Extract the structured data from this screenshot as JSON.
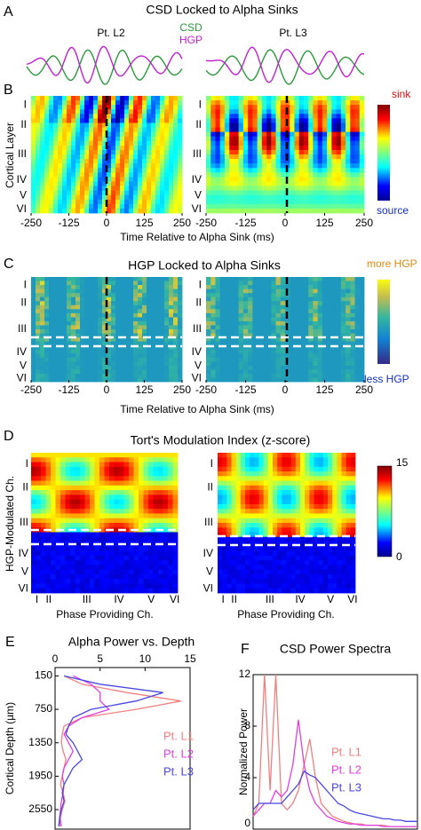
{
  "figure": {
    "A": {
      "label": "A",
      "title": "CSD Locked to Alpha Sinks",
      "legend": [
        "CSD",
        "HGP"
      ],
      "subplots": [
        "Pt. L2",
        "Pt. L3"
      ]
    },
    "B": {
      "label": "B",
      "ylabel": "Cortical Layer",
      "layers": [
        "I",
        "II",
        "III",
        "IV",
        "V",
        "VI"
      ],
      "xticks": [
        -250,
        -125,
        0,
        125,
        250
      ],
      "xlabel": "Time Relative to Alpha Sink (ms)",
      "colorbar": [
        "sink",
        "source"
      ]
    },
    "C": {
      "label": "C",
      "title": "HGP Locked to Alpha Sinks",
      "layers": [
        "I",
        "II",
        "III",
        "IV",
        "V",
        "VI"
      ],
      "xticks": [
        -250,
        -125,
        0,
        125,
        250
      ],
      "xlabel": "Time Relative to Alpha Sink (ms)",
      "colorbar": [
        "more HGP",
        "less HGP"
      ]
    },
    "D": {
      "label": "D",
      "title": "Tort's Modulation Index (z-score)",
      "ylabel": "HGP-Modulated Ch.",
      "xlabel": "Phase Providing Ch.",
      "layers": [
        "I",
        "II",
        "III",
        "IV",
        "V",
        "VI"
      ],
      "colorbar_ticks": [
        15,
        0
      ]
    }
  },
  "chart_data": [
    {
      "type": "line",
      "label": "E",
      "title": "Alpha Power vs. Depth",
      "ylabel": "Cortical Depth (µm)",
      "y": [
        150,
        300,
        450,
        600,
        750,
        900,
        1050,
        1200,
        1350,
        1500,
        1650,
        1800,
        1950,
        2100,
        2250,
        2400,
        2550,
        2700,
        2850
      ],
      "xlim": [
        0,
        15
      ],
      "xticks": [
        0,
        5,
        10,
        15
      ],
      "ylim": [
        0,
        2900
      ],
      "yticks": [
        150,
        750,
        1350,
        1950,
        2550
      ],
      "y_inverted": true,
      "x_axis_position": "top",
      "series": [
        {
          "name": "Pt. L1",
          "color": "#f08080",
          "values": [
            1,
            3,
            8,
            14,
            9,
            3,
            1,
            0.8,
            0.7,
            0.9,
            1.2,
            1,
            0.8,
            0.6,
            0.9,
            1.1,
            0.8,
            0.6,
            0.7
          ]
        },
        {
          "name": "Pt. L2",
          "color": "#e040e0",
          "values": [
            2,
            4,
            5,
            5,
            6,
            3,
            1.5,
            1,
            1.5,
            2,
            1.5,
            1,
            0.8,
            1,
            0.9,
            0.7,
            0.6,
            0.5,
            0.6
          ]
        },
        {
          "name": "Pt. L3",
          "color": "#4848e0",
          "values": [
            1,
            5,
            12,
            9,
            4,
            2,
            1.5,
            1.2,
            2,
            2.5,
            3,
            2,
            1.5,
            1,
            0.8,
            1,
            0.7,
            0.5,
            0.4
          ]
        }
      ]
    },
    {
      "type": "line",
      "label": "F",
      "title": "CSD Power Spectra",
      "ylabel": "Normalized Power",
      "ylim": [
        0,
        12
      ],
      "yticks": [
        0,
        4,
        8,
        12
      ],
      "series": [
        {
          "name": "Pt. L1",
          "color": "#f08080",
          "values": [
            1,
            2,
            12,
            3,
            12,
            2,
            1.5,
            2,
            3,
            5,
            7,
            4,
            2,
            1.5,
            1,
            0.8,
            0.6,
            0.5,
            0.4,
            0.4,
            0.3,
            0.3,
            0.3,
            0.3,
            0.2,
            0.2,
            0.2,
            0.2,
            0.2,
            0.2
          ]
        },
        {
          "name": "Pt. L2",
          "color": "#e040e0",
          "values": [
            1,
            1.5,
            2,
            2,
            3,
            2.5,
            3,
            5,
            8.5,
            5,
            3,
            2,
            1.5,
            1,
            0.8,
            0.6,
            0.5,
            0.4,
            0.4,
            0.3,
            0.3,
            0.3,
            0.3,
            0.2,
            0.2,
            0.2,
            0.2,
            0.2,
            0.2,
            0.2
          ]
        },
        {
          "name": "Pt. L3",
          "color": "#4848e0",
          "values": [
            1.5,
            2,
            2,
            2,
            2,
            2,
            2.5,
            3,
            3.5,
            4.5,
            4.2,
            4,
            3.5,
            3,
            2.5,
            2,
            1.8,
            1.5,
            1.3,
            1.2,
            1.1,
            1,
            0.9,
            0.8,
            0.8,
            0.7,
            0.7,
            0.6,
            0.6,
            0.6
          ]
        }
      ]
    }
  ]
}
